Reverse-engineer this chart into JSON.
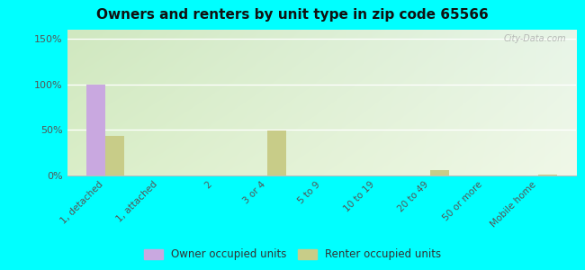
{
  "title": "Owners and renters by unit type in zip code 65566",
  "categories": [
    "1, detached",
    "1, attached",
    "2",
    "3 or 4",
    "5 to 9",
    "10 to 19",
    "20 to 49",
    "50 or more",
    "Mobile home"
  ],
  "owner_values": [
    100,
    0,
    0,
    0,
    0,
    0,
    0,
    0,
    0
  ],
  "renter_values": [
    43,
    0,
    0,
    49,
    0,
    0,
    6,
    0,
    1
  ],
  "owner_color": "#c9a8e0",
  "renter_color": "#c8cc88",
  "ylim": [
    0,
    160
  ],
  "yticks": [
    0,
    50,
    100,
    150
  ],
  "ytick_labels": [
    "0%",
    "50%",
    "100%",
    "150%"
  ],
  "grad_top_left": "#d0e8c0",
  "grad_top_right": "#e8f5e8",
  "grad_bottom": "#f0f8e8",
  "outer_bg": "#00ffff",
  "bar_width": 0.35,
  "legend_owner": "Owner occupied units",
  "legend_renter": "Renter occupied units",
  "watermark": "City-Data.com"
}
